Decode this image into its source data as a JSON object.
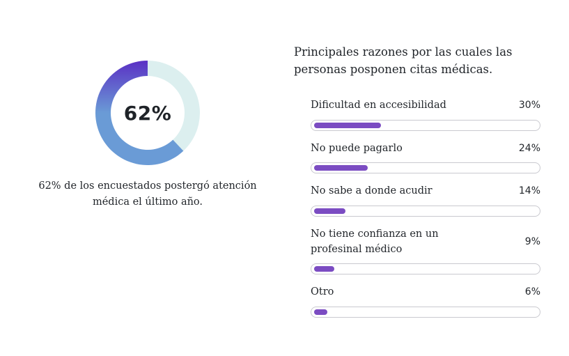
{
  "colors": {
    "donut_gradient_top": "#5a30c4",
    "donut_gradient_bottom": "#6a9bd6",
    "donut_remainder": "#dcefef",
    "bar_fill": "#7b4cc2",
    "bar_track_border": "#c9c9cf"
  },
  "donut": {
    "value_label": "62%",
    "fraction": 0.62,
    "caption": "62% de los encuestados postergó atención médica el último año."
  },
  "chart_data": [
    {
      "type": "pie",
      "values": [
        62,
        38
      ],
      "unit": "%"
    },
    {
      "type": "bar",
      "title": "Principales razones por las cuales las personas posponen citas médicas.",
      "categories": [
        "Dificultad en accesibilidad",
        "No puede pagarlo",
        "No sabe a donde acudir",
        "No tiene confianza en un profesinal médico",
        "Otro"
      ],
      "values": [
        30,
        24,
        14,
        9,
        6
      ],
      "value_labels": [
        "30%",
        "24%",
        "14%",
        "9%",
        "6%"
      ],
      "ylim": [
        0,
        100
      ]
    }
  ]
}
